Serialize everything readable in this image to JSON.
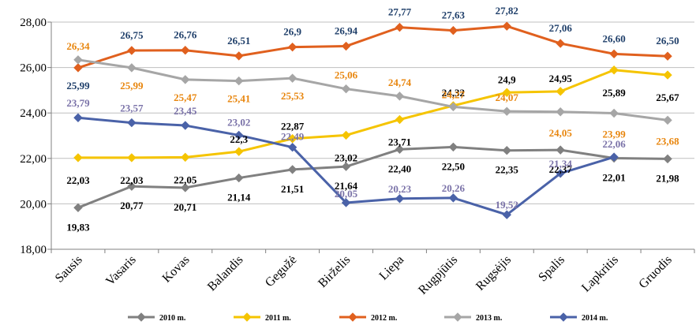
{
  "chart_data": {
    "type": "line",
    "title": "",
    "xlabel": "",
    "ylabel": "",
    "ylim": [
      18,
      28
    ],
    "yticks": [
      "18,00",
      "20,00",
      "22,00",
      "24,00",
      "26,00",
      "28,00"
    ],
    "grid": "horizontal",
    "legend_position": "bottom",
    "categories": [
      "Sausis",
      "Vasaris",
      "Kovas",
      "Balandis",
      "Gegužė",
      "Birželis",
      "Liepa",
      "Rugpjūtis",
      "Rugsėjis",
      "Spalis",
      "Lapkritis",
      "Gruodis"
    ],
    "series": [
      {
        "name": "2010 m.",
        "color": "#808080",
        "values": [
          19.83,
          20.77,
          20.71,
          21.14,
          21.51,
          21.64,
          22.4,
          22.5,
          22.35,
          22.37,
          22.01,
          21.98
        ],
        "labels": [
          "19,83",
          "20,77",
          "20,71",
          "21,14",
          "21,51",
          "21,64",
          "22,40",
          "22,50",
          "22,35",
          "22,37",
          "22,01",
          "21,98"
        ],
        "label_color": "#000000"
      },
      {
        "name": "2011 m.",
        "color": "#f5c400",
        "values": [
          22.03,
          22.03,
          22.05,
          22.3,
          22.87,
          23.02,
          23.71,
          24.32,
          24.9,
          24.95,
          25.89,
          25.67
        ],
        "labels": [
          "22,03",
          "22,03",
          "22,05",
          "22,3",
          "22,87",
          "23,02",
          "23,71",
          "24,32",
          "24,9",
          "24,95",
          "25,89",
          "25,67"
        ],
        "label_color": "#000000"
      },
      {
        "name": "2012 m.",
        "color": "#e0601e",
        "values": [
          25.99,
          26.75,
          26.76,
          26.51,
          26.9,
          26.94,
          27.77,
          27.63,
          27.82,
          27.06,
          26.6,
          26.5
        ],
        "labels": [
          "25,99",
          "26,75",
          "26,76",
          "26,51",
          "26,9",
          "26,94",
          "27,77",
          "27,63",
          "27,82",
          "27,06",
          "26,60",
          "26,50"
        ],
        "label_color": "#1f3f6a"
      },
      {
        "name": "2013 m.",
        "color": "#a6a6a6",
        "values": [
          26.34,
          25.99,
          25.47,
          25.41,
          25.53,
          25.06,
          24.74,
          24.27,
          24.07,
          24.05,
          23.99,
          23.68
        ],
        "labels": [
          "26,34",
          "25,99",
          "25,47",
          "25,41",
          "25,53",
          "25,06",
          "24,74",
          "24,27",
          "24,07",
          "24,05",
          "23,99",
          "23,68"
        ],
        "label_color": "#e8860e"
      },
      {
        "name": "2014 m.",
        "color": "#4a62a8",
        "values": [
          23.79,
          23.57,
          23.45,
          23.02,
          22.49,
          20.05,
          20.23,
          20.26,
          19.52,
          21.34,
          22.06,
          null
        ],
        "labels": [
          "23,79",
          "23,57",
          "23,45",
          "23,02",
          "22,49",
          "20,05",
          "20,23",
          "20,26",
          "19,52",
          "21,34",
          "22,06",
          ""
        ],
        "label_color": "#7a72a8"
      }
    ]
  }
}
